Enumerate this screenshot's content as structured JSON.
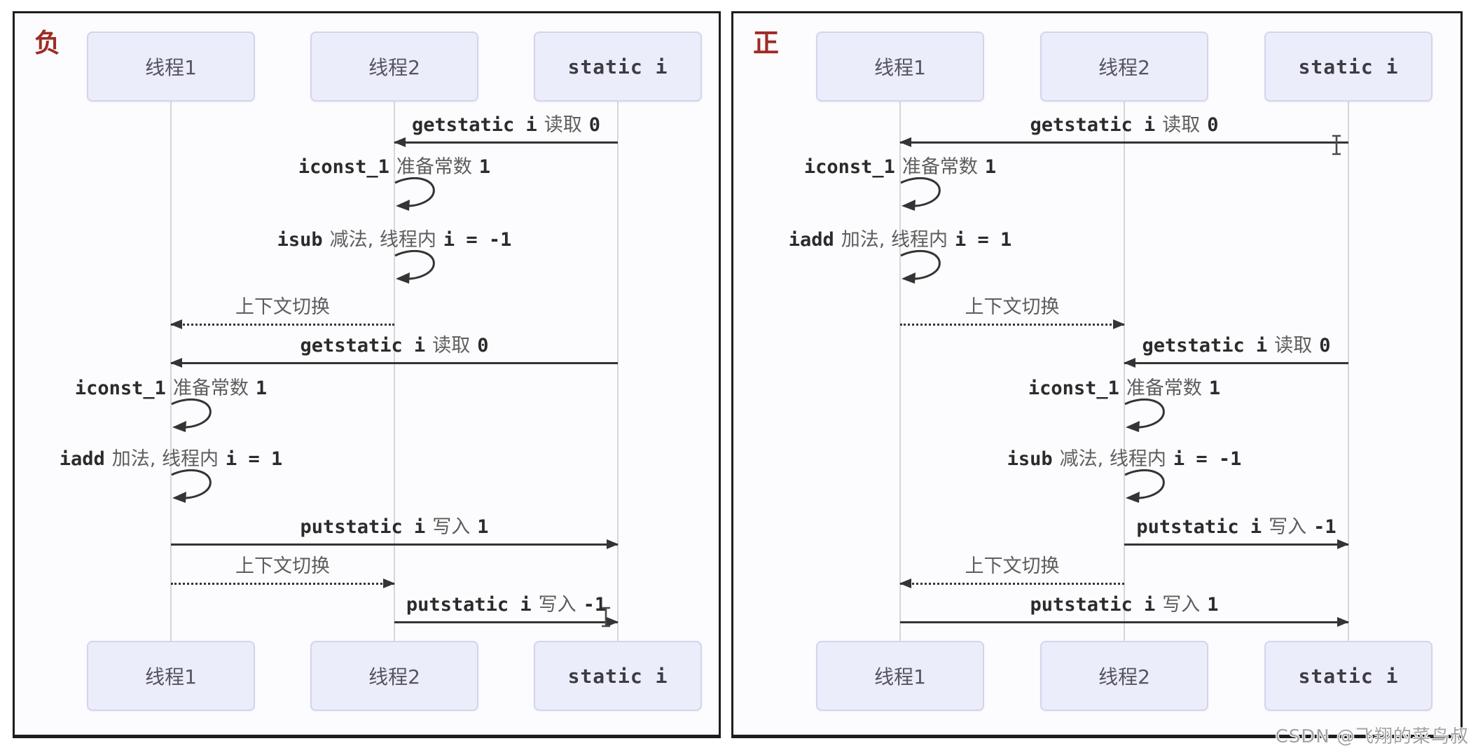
{
  "page": {
    "watermark": "CSDN @飞翔的菜鸟叔"
  },
  "colors": {
    "accent_red": "#9e2b25",
    "box_fill": "#ecedfa",
    "box_border": "#d2d5ee",
    "arrow": "#343434",
    "mono_text": "#2b2b2b",
    "cn_text": "#5d5d5d",
    "lifeline": "#d6d6da",
    "watermark": "#a3a3a3",
    "panel_border": "#1d1d1f",
    "panel_bg": "#fcfcfe"
  },
  "panels": [
    {
      "tag": "负",
      "participants": [
        {
          "label": "线程1",
          "mono": false
        },
        {
          "label": "线程2",
          "mono": false
        },
        {
          "label": "static i",
          "mono": true
        }
      ],
      "messages": [
        {
          "kind": "arrow",
          "from": 2,
          "to": 1,
          "line": "solid",
          "segs": [
            {
              "t": "getstatic i",
              "m": true
            },
            {
              "t": "读取",
              "m": false
            },
            {
              "t": "0",
              "m": true
            }
          ]
        },
        {
          "kind": "self",
          "on": 1,
          "segs": [
            {
              "t": "iconst_1",
              "m": true
            },
            {
              "t": "准备常数",
              "m": false
            },
            {
              "t": "1",
              "m": true
            }
          ]
        },
        {
          "kind": "self",
          "on": 1,
          "segs": [
            {
              "t": "isub",
              "m": true
            },
            {
              "t": "减法, 线程内",
              "m": false
            },
            {
              "t": "i = -1",
              "m": true
            }
          ]
        },
        {
          "kind": "arrow",
          "from": 1,
          "to": 0,
          "line": "dotted",
          "segs": [
            {
              "t": "上下文切换",
              "m": false
            }
          ]
        },
        {
          "kind": "arrow",
          "from": 2,
          "to": 0,
          "line": "solid",
          "segs": [
            {
              "t": "getstatic i",
              "m": true
            },
            {
              "t": "读取",
              "m": false
            },
            {
              "t": "0",
              "m": true
            }
          ]
        },
        {
          "kind": "self",
          "on": 0,
          "segs": [
            {
              "t": "iconst_1",
              "m": true
            },
            {
              "t": "准备常数",
              "m": false
            },
            {
              "t": "1",
              "m": true
            }
          ]
        },
        {
          "kind": "self",
          "on": 0,
          "segs": [
            {
              "t": "iadd",
              "m": true
            },
            {
              "t": "加法, 线程内",
              "m": false
            },
            {
              "t": "i = 1",
              "m": true
            }
          ]
        },
        {
          "kind": "arrow",
          "from": 0,
          "to": 2,
          "line": "solid",
          "segs": [
            {
              "t": "putstatic i",
              "m": true
            },
            {
              "t": "写入",
              "m": false
            },
            {
              "t": "1",
              "m": true
            }
          ]
        },
        {
          "kind": "arrow",
          "from": 0,
          "to": 1,
          "line": "dotted",
          "segs": [
            {
              "t": "上下文切换",
              "m": false
            }
          ]
        },
        {
          "kind": "arrow",
          "from": 1,
          "to": 2,
          "line": "solid",
          "segs": [
            {
              "t": "putstatic i",
              "m": true
            },
            {
              "t": "写入",
              "m": false
            },
            {
              "t": "-1",
              "m": true
            }
          ]
        }
      ]
    },
    {
      "tag": "正",
      "participants": [
        {
          "label": "线程1",
          "mono": false
        },
        {
          "label": "线程2",
          "mono": false
        },
        {
          "label": "static i",
          "mono": true
        }
      ],
      "messages": [
        {
          "kind": "arrow",
          "from": 2,
          "to": 0,
          "line": "solid",
          "segs": [
            {
              "t": "getstatic i",
              "m": true
            },
            {
              "t": "读取",
              "m": false
            },
            {
              "t": "0",
              "m": true
            }
          ]
        },
        {
          "kind": "self",
          "on": 0,
          "segs": [
            {
              "t": "iconst_1",
              "m": true
            },
            {
              "t": "准备常数",
              "m": false
            },
            {
              "t": "1",
              "m": true
            }
          ]
        },
        {
          "kind": "self",
          "on": 0,
          "segs": [
            {
              "t": "iadd",
              "m": true
            },
            {
              "t": "加法, 线程内",
              "m": false
            },
            {
              "t": "i = 1",
              "m": true
            }
          ]
        },
        {
          "kind": "arrow",
          "from": 0,
          "to": 1,
          "line": "dotted",
          "segs": [
            {
              "t": "上下文切换",
              "m": false
            }
          ]
        },
        {
          "kind": "arrow",
          "from": 2,
          "to": 1,
          "line": "solid",
          "segs": [
            {
              "t": "getstatic i",
              "m": true
            },
            {
              "t": "读取",
              "m": false
            },
            {
              "t": "0",
              "m": true
            }
          ]
        },
        {
          "kind": "self",
          "on": 1,
          "segs": [
            {
              "t": "iconst_1",
              "m": true
            },
            {
              "t": "准备常数",
              "m": false
            },
            {
              "t": "1",
              "m": true
            }
          ]
        },
        {
          "kind": "self",
          "on": 1,
          "segs": [
            {
              "t": "isub",
              "m": true
            },
            {
              "t": "减法, 线程内",
              "m": false
            },
            {
              "t": "i = -1",
              "m": true
            }
          ]
        },
        {
          "kind": "arrow",
          "from": 1,
          "to": 2,
          "line": "solid",
          "segs": [
            {
              "t": "putstatic i",
              "m": true
            },
            {
              "t": "写入",
              "m": false
            },
            {
              "t": "-1",
              "m": true
            }
          ]
        },
        {
          "kind": "arrow",
          "from": 1,
          "to": 0,
          "line": "dotted",
          "segs": [
            {
              "t": "上下文切换",
              "m": false
            }
          ]
        },
        {
          "kind": "arrow",
          "from": 0,
          "to": 2,
          "line": "solid",
          "segs": [
            {
              "t": "putstatic i",
              "m": true
            },
            {
              "t": "写入",
              "m": false
            },
            {
              "t": "1",
              "m": true
            }
          ]
        }
      ]
    }
  ]
}
